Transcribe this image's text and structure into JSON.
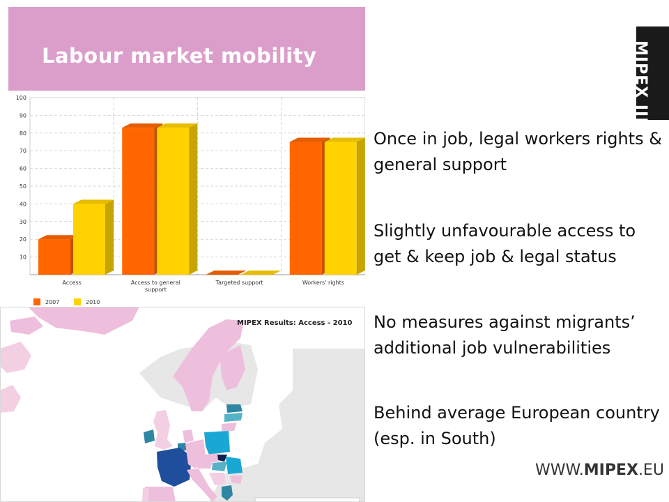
{
  "slide": {
    "title": "Labour market mobility",
    "bullets": [
      "Once in job, legal workers rights & general support",
      "Slightly unfavourable access to get & keep job & legal status",
      "No measures against migrants’ additional job vulnerabilities",
      "Behind average European country (esp. in South)"
    ],
    "logo": "MIPEX III",
    "website_prefix": "WWW.",
    "website_bold": "MIPEX",
    "website_suffix": ".EU"
  },
  "chart_data": {
    "type": "bar",
    "categories": [
      "Access",
      "Access to general support",
      "Targeted support",
      "Workers' rights"
    ],
    "series": [
      {
        "name": "2007",
        "color": "#ff6600",
        "values": [
          20,
          83,
          0,
          75
        ]
      },
      {
        "name": "2010",
        "color": "#ffd200",
        "values": [
          40,
          83,
          0,
          75
        ]
      }
    ],
    "ylim": [
      0,
      100
    ],
    "yticks": [
      10,
      20,
      30,
      40,
      50,
      60,
      70,
      80,
      90,
      100
    ],
    "grid": true,
    "legend_position": "bottom-left"
  },
  "map": {
    "title": "MIPEX Results: Access - 2010",
    "colors": {
      "sea": "#ffffff",
      "outside": "#e7e7e7",
      "pink": "#eebfdc",
      "pink_light": "#f3cfe4",
      "blue_dark": "#1f4e9c",
      "teal": "#2f86a3",
      "cyan": "#19a8d4",
      "teal_light": "#56b3c5",
      "navy": "#10204c"
    }
  }
}
